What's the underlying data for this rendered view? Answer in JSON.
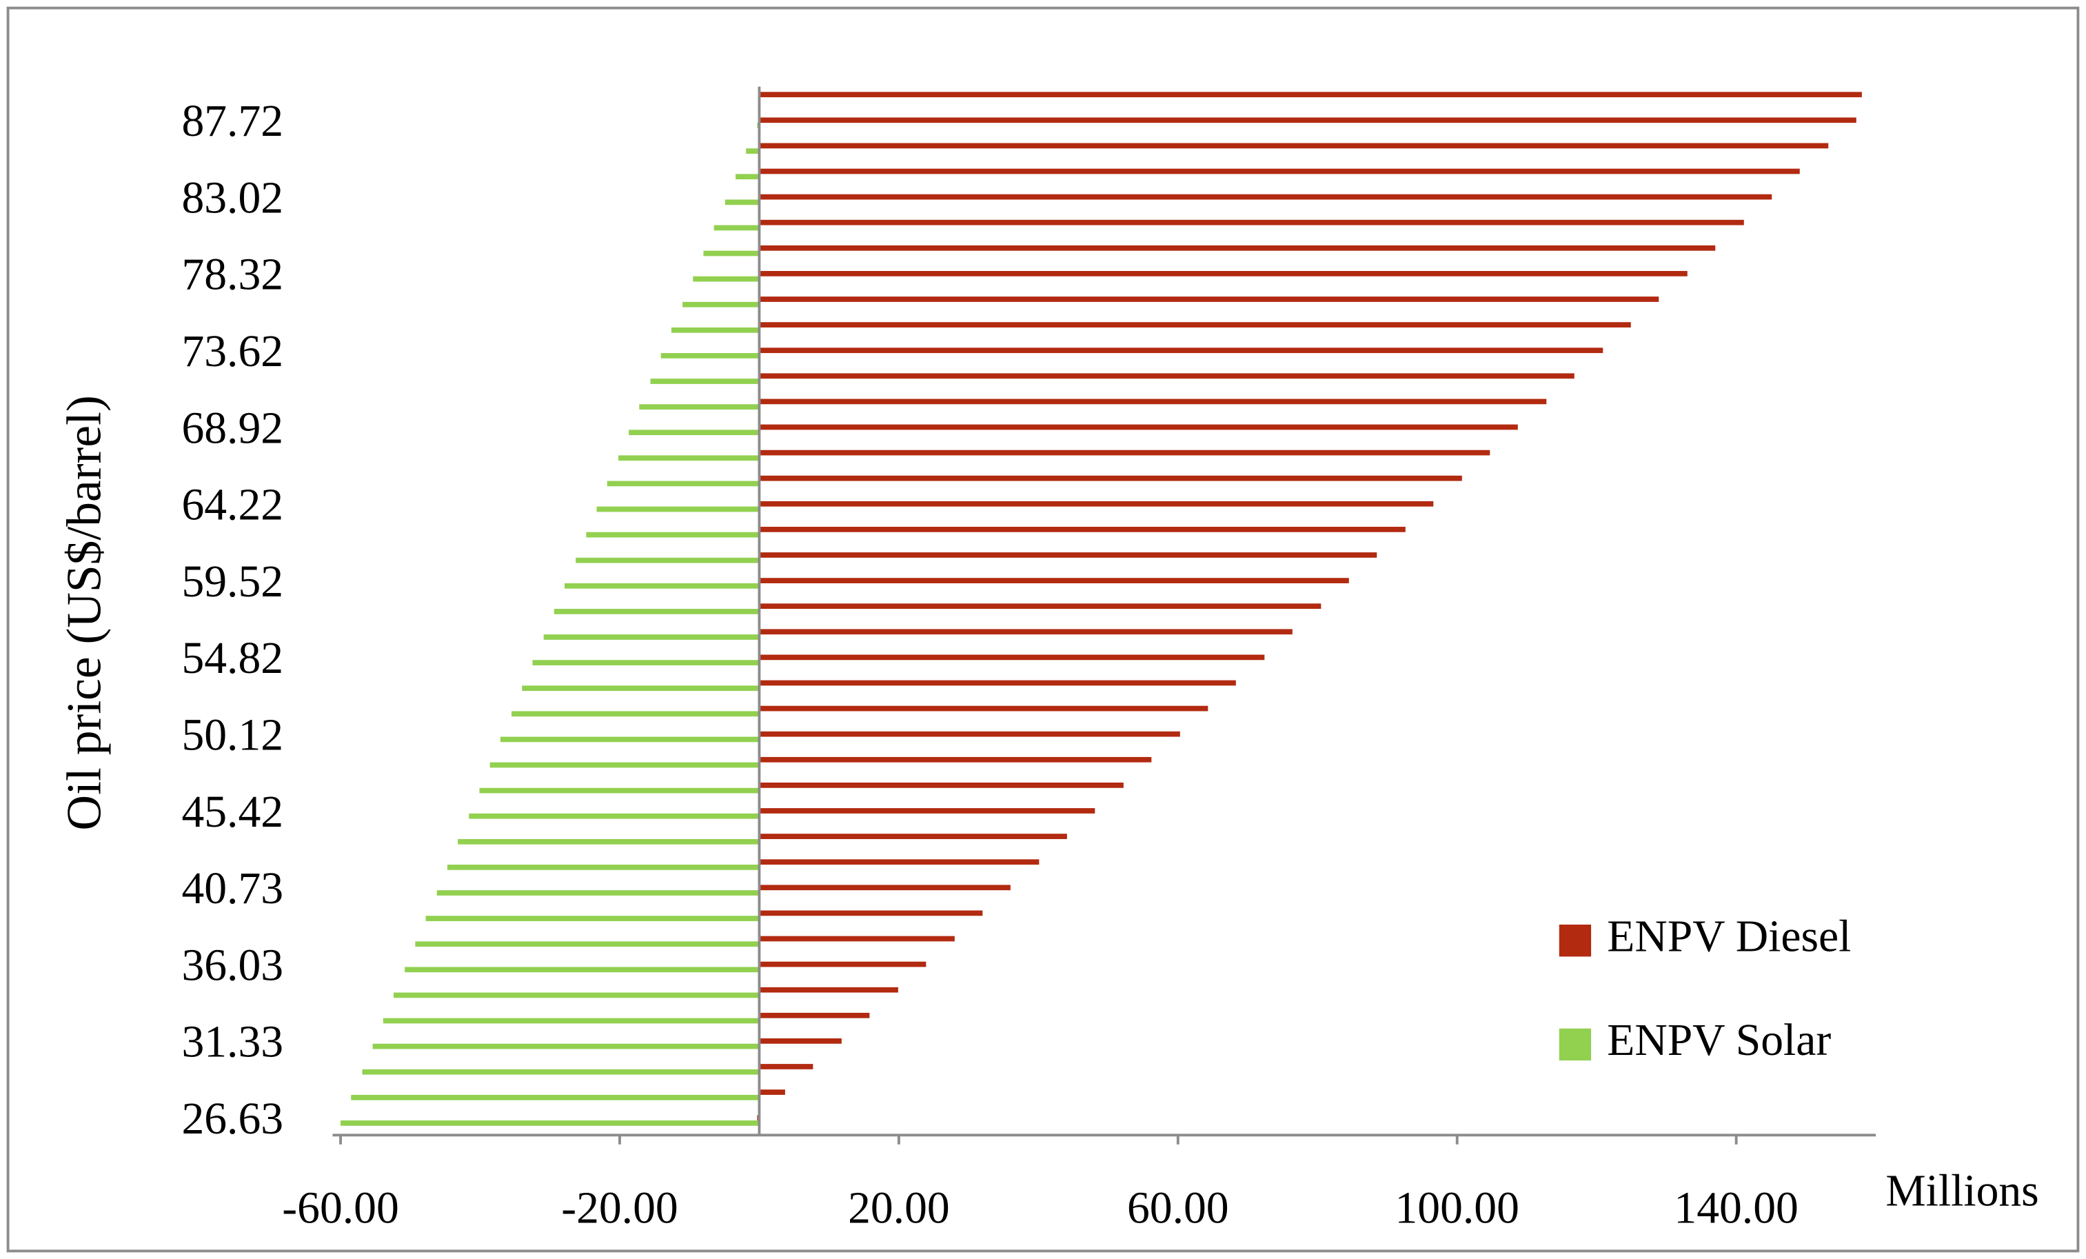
{
  "chart_data": {
    "type": "hbar",
    "ylabel": "Oil price (US$/barrel)",
    "xlabel": "Millions",
    "categories": [
      "26.63",
      null,
      null,
      "31.33",
      null,
      null,
      "36.03",
      null,
      null,
      "40.73",
      null,
      null,
      "45.42",
      null,
      null,
      "50.12",
      null,
      null,
      "54.82",
      null,
      null,
      "59.52",
      null,
      null,
      "64.22",
      null,
      null,
      "68.92",
      null,
      null,
      "73.62",
      null,
      null,
      "78.32",
      null,
      null,
      "83.02",
      null,
      null,
      "87.72",
      null
    ],
    "series": [
      {
        "name": "ENPV Diesel",
        "color": "#b22a10",
        "values": [
          -0.3,
          3.7,
          7.7,
          11.8,
          15.8,
          19.9,
          23.9,
          28.0,
          32.0,
          36.0,
          40.1,
          44.1,
          48.1,
          52.2,
          56.2,
          60.3,
          64.3,
          68.3,
          72.4,
          76.4,
          80.5,
          84.5,
          88.5,
          92.6,
          96.6,
          100.7,
          104.7,
          108.7,
          112.8,
          116.8,
          120.9,
          124.9,
          128.9,
          133.0,
          137.0,
          141.1,
          145.1,
          149.1,
          153.2,
          157.2,
          158.0
        ]
      },
      {
        "name": "ENPV Solar",
        "color": "#92d050",
        "values": [
          -60,
          -58.5,
          -56.9,
          -55.4,
          -53.9,
          -52.4,
          -50.8,
          -49.3,
          -47.8,
          -46.2,
          -44.7,
          -43.2,
          -41.6,
          -40.1,
          -38.6,
          -37.1,
          -35.5,
          -34.0,
          -32.5,
          -30.9,
          -29.4,
          -27.9,
          -26.3,
          -24.8,
          -23.3,
          -21.8,
          -20.2,
          -18.7,
          -17.2,
          -15.6,
          -14.1,
          -12.6,
          -11.0,
          -9.5,
          -8.0,
          -6.5,
          -4.9,
          -3.4,
          -1.9,
          -0.3,
          0
        ]
      }
    ],
    "xlim": [
      -60,
      160
    ],
    "xticks": [
      {
        "value": -60,
        "label": "-60.00"
      },
      {
        "value": -20,
        "label": "-20.00"
      },
      {
        "value": 20,
        "label": "20.00"
      },
      {
        "value": 60,
        "label": "60.00"
      },
      {
        "value": 100,
        "label": "100.00"
      },
      {
        "value": 140,
        "label": "140.00"
      }
    ],
    "legend": "lower right",
    "grid": false
  }
}
